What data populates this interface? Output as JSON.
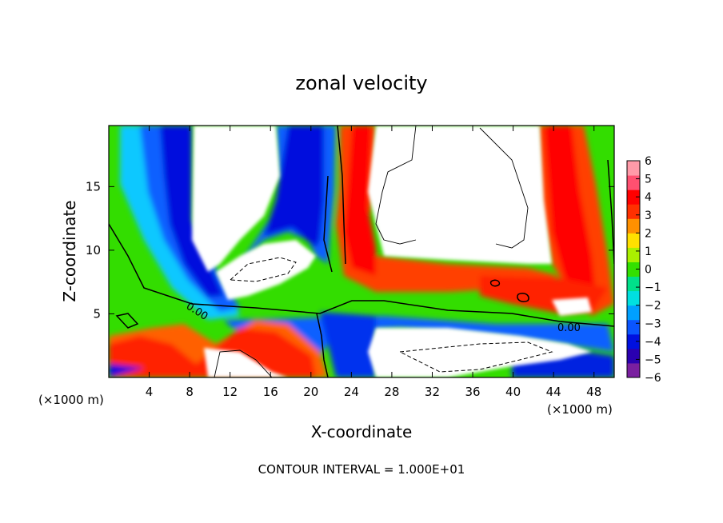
{
  "chart_data": {
    "type": "heatmap",
    "title": "zonal velocity",
    "xlabel": "X-coordinate",
    "ylabel": "Z-coordinate",
    "x_unit_left": "(×1000 m)",
    "x_unit_right": "(×1000 m)",
    "xlim": [
      0,
      50
    ],
    "ylim": [
      0,
      19.8
    ],
    "x_ticks": [
      4,
      8,
      12,
      16,
      20,
      24,
      28,
      32,
      36,
      40,
      44,
      48
    ],
    "y_ticks": [
      5,
      10,
      15
    ],
    "colorbar": {
      "range": [
        -6,
        6
      ],
      "ticks": [
        6,
        5,
        4,
        3,
        2,
        1,
        0,
        -1,
        -2,
        -3,
        -4,
        -5,
        -6
      ],
      "colors": [
        "#7a1fa0",
        "#2a00b0",
        "#0010e0",
        "#0a55ff",
        "#00a0ff",
        "#00e0e0",
        "#00e08a",
        "#33e000",
        "#aaf000",
        "#ffe000",
        "#ff9000",
        "#ff3000",
        "#ff0000",
        "#ff5070",
        "#ff9aa8"
      ]
    },
    "contour_labels": [
      "0.00",
      "0.00"
    ],
    "footer": "CONTOUR INTERVAL = 1.000E+01"
  }
}
